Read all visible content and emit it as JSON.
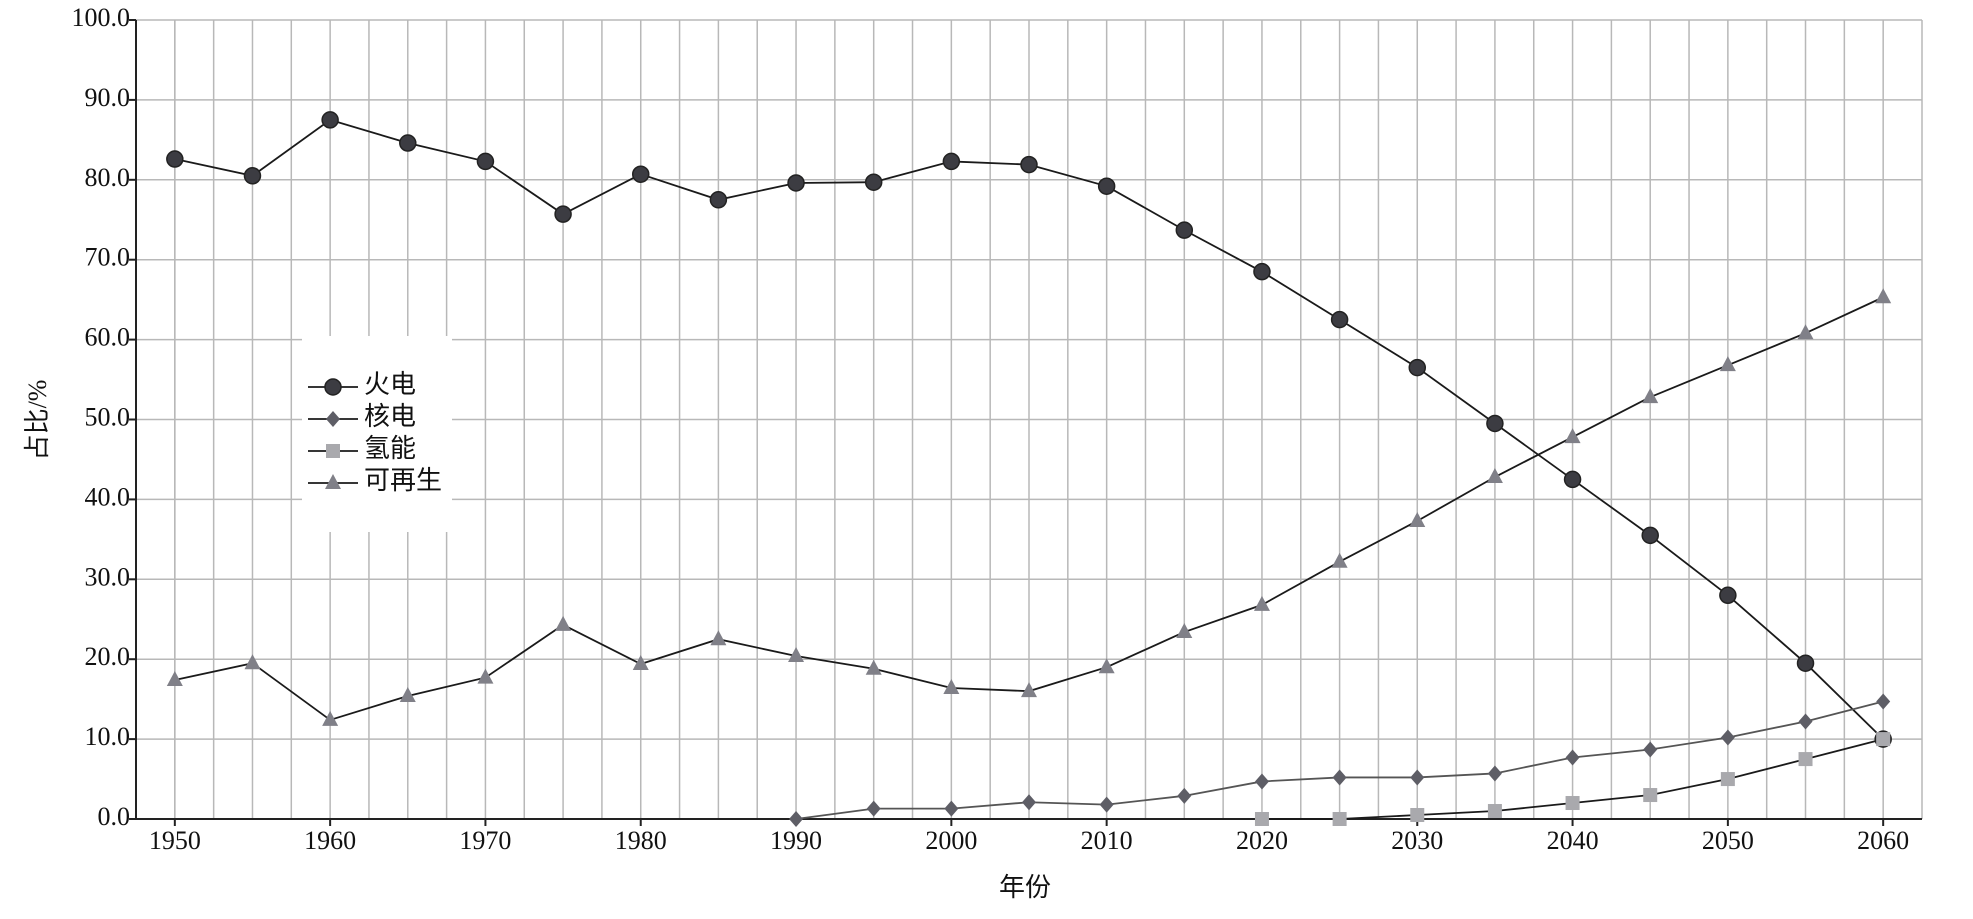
{
  "chart_data": {
    "type": "line",
    "xlabel": "年份",
    "ylabel": "占比/%",
    "x": [
      1950,
      1955,
      1960,
      1965,
      1970,
      1975,
      1980,
      1985,
      1990,
      1995,
      2000,
      2005,
      2010,
      2015,
      2020,
      2025,
      2030,
      2035,
      2040,
      2045,
      2050,
      2055,
      2060
    ],
    "series": [
      {
        "name": "火电",
        "color": "#3c3c42",
        "marker": "circle",
        "values": [
          82.6,
          80.5,
          87.5,
          84.6,
          82.3,
          75.7,
          80.7,
          77.5,
          79.6,
          79.7,
          82.3,
          81.9,
          79.2,
          73.7,
          68.5,
          62.5,
          56.5,
          49.5,
          42.5,
          35.5,
          28.0,
          19.5,
          10.0
        ]
      },
      {
        "name": "核电",
        "color": "#5e5e66",
        "marker": "diamond",
        "values": [
          null,
          null,
          null,
          null,
          null,
          null,
          null,
          null,
          0,
          1.3,
          1.3,
          2.1,
          1.8,
          2.9,
          4.7,
          5.2,
          5.2,
          5.7,
          7.7,
          8.7,
          10.2,
          12.2,
          14.7
        ]
      },
      {
        "name": "氢能",
        "color": "#a9a9ad",
        "marker": "square",
        "values": [
          null,
          null,
          null,
          null,
          null,
          null,
          null,
          null,
          null,
          null,
          null,
          null,
          null,
          null,
          0,
          0,
          0.5,
          1.0,
          2.0,
          3.0,
          5.0,
          7.5,
          10.0
        ]
      },
      {
        "name": "可再生",
        "color": "#808088",
        "marker": "triangle",
        "values": [
          17.4,
          19.5,
          12.4,
          15.4,
          17.7,
          24.3,
          19.4,
          22.5,
          20.4,
          18.8,
          16.4,
          16.0,
          19.0,
          23.4,
          26.8,
          32.2,
          37.3,
          42.8,
          47.8,
          52.8,
          56.8,
          60.8,
          65.3
        ]
      }
    ],
    "xlim": [
      1947.5,
      2062.5
    ],
    "xticks": [
      1950,
      1960,
      1970,
      1980,
      1990,
      2000,
      2010,
      2020,
      2030,
      2040,
      2050,
      2060
    ],
    "ylim": [
      0,
      100
    ],
    "yticks": [
      {
        "value": 0,
        "label": "0.0"
      },
      {
        "value": 10,
        "label": "10.0"
      },
      {
        "value": 20,
        "label": "20.0"
      },
      {
        "value": 30,
        "label": "30.0"
      },
      {
        "value": 40,
        "label": "40.0"
      },
      {
        "value": 50,
        "label": "50.0"
      },
      {
        "value": 60,
        "label": "60.0"
      },
      {
        "value": 70,
        "label": "70.0"
      },
      {
        "value": 80,
        "label": "80.0"
      },
      {
        "value": 90,
        "label": "90.0"
      },
      {
        "value": 100,
        "label": "100.0"
      }
    ],
    "grid": true
  }
}
